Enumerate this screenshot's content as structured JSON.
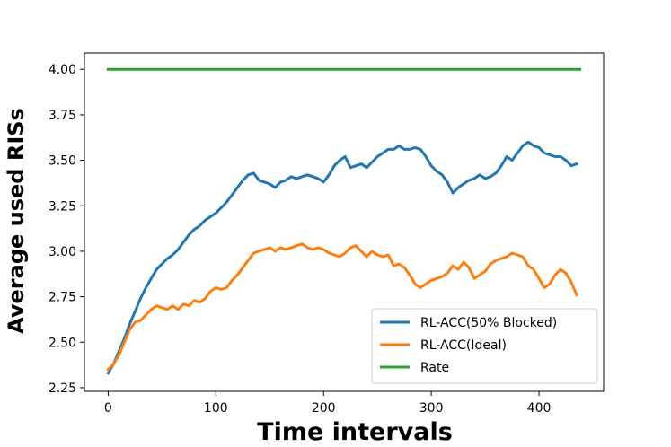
{
  "chart_data": {
    "type": "line",
    "title": "",
    "xlabel": "Time intervals",
    "ylabel": "Average used RISs",
    "xlim": [
      -22,
      460
    ],
    "ylim": [
      2.23,
      4.09
    ],
    "xticks": [
      0,
      100,
      200,
      300,
      400
    ],
    "xtick_labels": [
      "0",
      "100",
      "200",
      "300",
      "400"
    ],
    "yticks": [
      2.25,
      2.5,
      2.75,
      3.0,
      3.25,
      3.5,
      3.75,
      4.0
    ],
    "ytick_labels": [
      "2.25",
      "2.50",
      "2.75",
      "3.00",
      "3.25",
      "3.50",
      "3.75",
      "4.00"
    ],
    "grid": false,
    "legend_position": "lower-right",
    "series": [
      {
        "name": "RL-ACC(50% Blocked)",
        "color": "#1f77b4",
        "x": [
          0,
          5,
          10,
          15,
          20,
          25,
          30,
          35,
          40,
          45,
          50,
          55,
          60,
          65,
          70,
          75,
          80,
          85,
          90,
          95,
          100,
          105,
          110,
          115,
          120,
          125,
          130,
          135,
          140,
          145,
          150,
          155,
          160,
          165,
          170,
          175,
          180,
          185,
          190,
          195,
          200,
          205,
          210,
          215,
          220,
          225,
          230,
          235,
          240,
          245,
          250,
          255,
          260,
          265,
          270,
          275,
          280,
          285,
          290,
          295,
          300,
          305,
          310,
          315,
          320,
          325,
          330,
          335,
          340,
          345,
          350,
          355,
          360,
          365,
          370,
          375,
          380,
          385,
          390,
          395,
          400,
          405,
          410,
          415,
          420,
          425,
          430,
          435
        ],
        "y": [
          2.33,
          2.38,
          2.45,
          2.52,
          2.6,
          2.67,
          2.74,
          2.8,
          2.85,
          2.9,
          2.93,
          2.96,
          2.98,
          3.01,
          3.05,
          3.09,
          3.12,
          3.14,
          3.17,
          3.19,
          3.21,
          3.24,
          3.27,
          3.31,
          3.35,
          3.39,
          3.42,
          3.43,
          3.39,
          3.38,
          3.37,
          3.35,
          3.38,
          3.39,
          3.41,
          3.4,
          3.41,
          3.42,
          3.41,
          3.4,
          3.38,
          3.42,
          3.47,
          3.5,
          3.52,
          3.46,
          3.47,
          3.48,
          3.46,
          3.49,
          3.52,
          3.54,
          3.56,
          3.56,
          3.58,
          3.56,
          3.56,
          3.57,
          3.56,
          3.52,
          3.47,
          3.44,
          3.42,
          3.38,
          3.32,
          3.35,
          3.37,
          3.39,
          3.4,
          3.42,
          3.4,
          3.41,
          3.43,
          3.47,
          3.52,
          3.5,
          3.54,
          3.58,
          3.6,
          3.58,
          3.57,
          3.54,
          3.53,
          3.52,
          3.52,
          3.5,
          3.47,
          3.48
        ]
      },
      {
        "name": "RL-ACC(Ideal)",
        "color": "#ff7f0e",
        "x": [
          0,
          5,
          10,
          15,
          20,
          25,
          30,
          35,
          40,
          45,
          50,
          55,
          60,
          65,
          70,
          75,
          80,
          85,
          90,
          95,
          100,
          105,
          110,
          115,
          120,
          125,
          130,
          135,
          140,
          145,
          150,
          155,
          160,
          165,
          170,
          175,
          180,
          185,
          190,
          195,
          200,
          205,
          210,
          215,
          220,
          225,
          230,
          235,
          240,
          245,
          250,
          255,
          260,
          265,
          270,
          275,
          280,
          285,
          290,
          295,
          300,
          305,
          310,
          315,
          320,
          325,
          330,
          335,
          340,
          345,
          350,
          355,
          360,
          365,
          370,
          375,
          380,
          385,
          390,
          395,
          400,
          405,
          410,
          415,
          420,
          425,
          430,
          435
        ],
        "y": [
          2.35,
          2.38,
          2.43,
          2.5,
          2.57,
          2.61,
          2.62,
          2.65,
          2.68,
          2.7,
          2.69,
          2.68,
          2.7,
          2.68,
          2.71,
          2.7,
          2.73,
          2.72,
          2.74,
          2.78,
          2.8,
          2.79,
          2.8,
          2.84,
          2.87,
          2.91,
          2.95,
          2.99,
          3.0,
          3.01,
          3.02,
          3.0,
          3.02,
          3.01,
          3.02,
          3.03,
          3.04,
          3.02,
          3.01,
          3.02,
          3.01,
          2.99,
          2.98,
          2.97,
          2.99,
          3.02,
          3.03,
          3.0,
          2.97,
          3.0,
          2.98,
          2.97,
          2.98,
          2.92,
          2.93,
          2.91,
          2.87,
          2.82,
          2.8,
          2.82,
          2.84,
          2.85,
          2.86,
          2.88,
          2.92,
          2.9,
          2.94,
          2.91,
          2.85,
          2.87,
          2.89,
          2.93,
          2.95,
          2.96,
          2.97,
          2.99,
          2.98,
          2.97,
          2.92,
          2.9,
          2.85,
          2.8,
          2.82,
          2.87,
          2.9,
          2.88,
          2.83,
          2.76
        ]
      },
      {
        "name": "Rate",
        "color": "#2ca02c",
        "x": [
          0,
          438
        ],
        "y": [
          4.0,
          4.0
        ]
      }
    ]
  }
}
